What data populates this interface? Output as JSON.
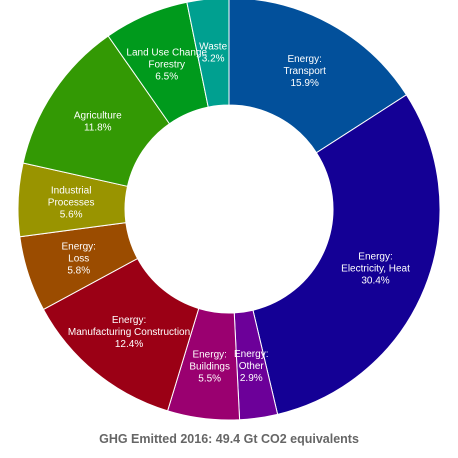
{
  "chart_data": {
    "type": "pie",
    "donut": true,
    "title": "GHG Emitted 2016: 49.4 Gt CO2 equivalents",
    "legend": "none",
    "slices": [
      {
        "label_lines": [
          "Energy:",
          "Transport"
        ],
        "value": 15.9,
        "value_label": "15.9%",
        "color": "#02509b"
      },
      {
        "label_lines": [
          "Energy:",
          "Electricity, Heat"
        ],
        "value": 30.4,
        "value_label": "30.4%",
        "color": "#140095"
      },
      {
        "label_lines": [
          "Energy:",
          "Other"
        ],
        "value": 2.9,
        "value_label": "2.9%",
        "color": "#6c0099"
      },
      {
        "label_lines": [
          "Energy:",
          "Buildings"
        ],
        "value": 5.5,
        "value_label": "5.5%",
        "color": "#9a0070"
      },
      {
        "label_lines": [
          "Energy:",
          "Manufacturing Construction"
        ],
        "value": 12.4,
        "value_label": "12.4%",
        "color": "#9b0015"
      },
      {
        "label_lines": [
          "Energy:",
          "Loss"
        ],
        "value": 5.8,
        "value_label": "5.8%",
        "color": "#9b4c00"
      },
      {
        "label_lines": [
          "Industrial",
          "Processes"
        ],
        "value": 5.6,
        "value_label": "5.6%",
        "color": "#999400"
      },
      {
        "label_lines": [
          "Agriculture"
        ],
        "value": 11.8,
        "value_label": "11.8%",
        "color": "#339904"
      },
      {
        "label_lines": [
          "Land Use Change",
          "Forestry"
        ],
        "value": 6.5,
        "value_label": "6.5%",
        "color": "#009a1c"
      },
      {
        "label_lines": [
          "Waste"
        ],
        "value": 3.2,
        "value_label": "3.2%",
        "color": "#00a090"
      }
    ]
  }
}
